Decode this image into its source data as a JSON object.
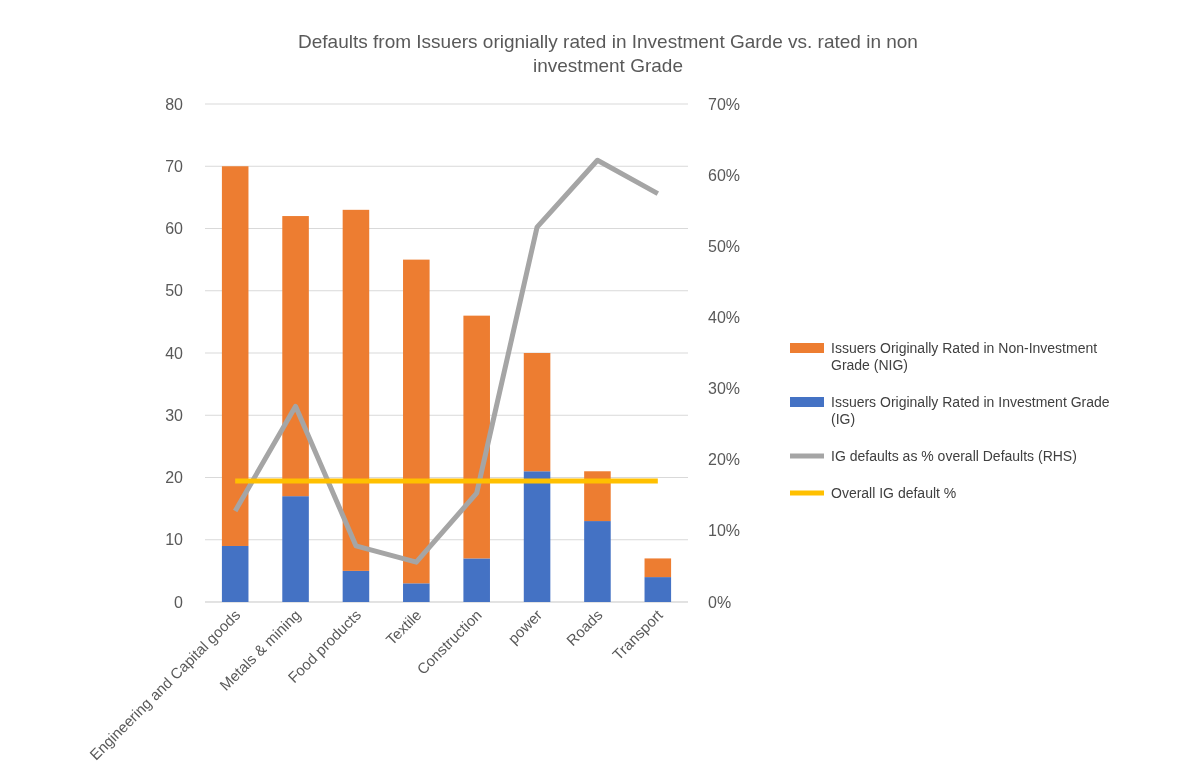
{
  "chart_data": {
    "type": "bar",
    "title": "Defaults from Issuers orignially rated in Investment Garde vs. rated in non investment Grade",
    "categories": [
      "Engineering and Capital goods",
      "Metals & mining",
      "Food products",
      "Textile",
      "Construction",
      "power",
      "Roads",
      "Transport"
    ],
    "stacked": true,
    "series": [
      {
        "name": "Issuers Originally Rated in Investment Grade (IG)",
        "color": "#4472c4",
        "values": [
          9,
          17,
          5,
          3,
          7,
          21,
          13,
          4
        ]
      },
      {
        "name": "Issuers Originally Rated in Non-Investment Grade (NIG)",
        "color": "#ed7d31",
        "values": [
          61,
          45,
          58,
          52,
          39,
          19,
          8,
          3
        ]
      },
      {
        "name": "IG defaults as % overall Defaults (RHS)",
        "type": "line",
        "axis": "y2",
        "color": "#a5a5a5",
        "values": [
          12.8,
          27.5,
          7.9,
          5.6,
          15.3,
          52.7,
          62.1,
          57.4
        ]
      },
      {
        "name": "Overall IG default %",
        "type": "line",
        "axis": "y2",
        "color": "#ffc000",
        "values": [
          17,
          17,
          17,
          17,
          17,
          17,
          17,
          17
        ]
      }
    ],
    "ylim": [
      0,
      80
    ],
    "yticks": [
      0,
      10,
      20,
      30,
      40,
      50,
      60,
      70,
      80
    ],
    "y2lim": [
      0,
      70
    ],
    "y2ticks": [
      {
        "value": 0,
        "label": "0%"
      },
      {
        "value": 10,
        "label": "10%"
      },
      {
        "value": 20,
        "label": "20%"
      },
      {
        "value": 30,
        "label": "30%"
      },
      {
        "value": 40,
        "label": "40%"
      },
      {
        "value": 50,
        "label": "50%"
      },
      {
        "value": 60,
        "label": "60%"
      },
      {
        "value": 70,
        "label": "70%"
      }
    ],
    "grid": "y",
    "legend": "right",
    "marker": "none"
  }
}
